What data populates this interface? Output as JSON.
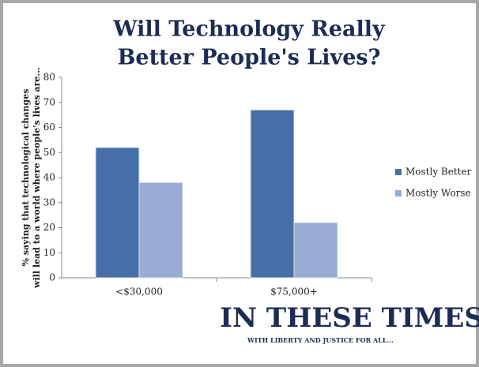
{
  "chart_data": {
    "type": "bar",
    "title": [
      "Will Technology Really",
      "Better People's Lives?"
    ],
    "y_label": [
      "% saying that technological changes",
      "will lead to a world where people's lives are..."
    ],
    "categories": [
      "<$30,000",
      "$75,000+"
    ],
    "series": [
      {
        "name": "Mostly Better",
        "color": "#466fa8",
        "values": [
          52,
          67
        ]
      },
      {
        "name": "Mostly Worse",
        "color": "#98acd4",
        "values": [
          38,
          22
        ]
      }
    ],
    "ylim": [
      0,
      80
    ],
    "yticks": [
      0,
      10,
      20,
      30,
      40,
      50,
      60,
      70,
      80
    ],
    "legend": "right",
    "logo": {
      "name": "IN THESE TIMES",
      "tagline": "WITH LIBERTY AND JUSTICE FOR ALL..."
    }
  }
}
